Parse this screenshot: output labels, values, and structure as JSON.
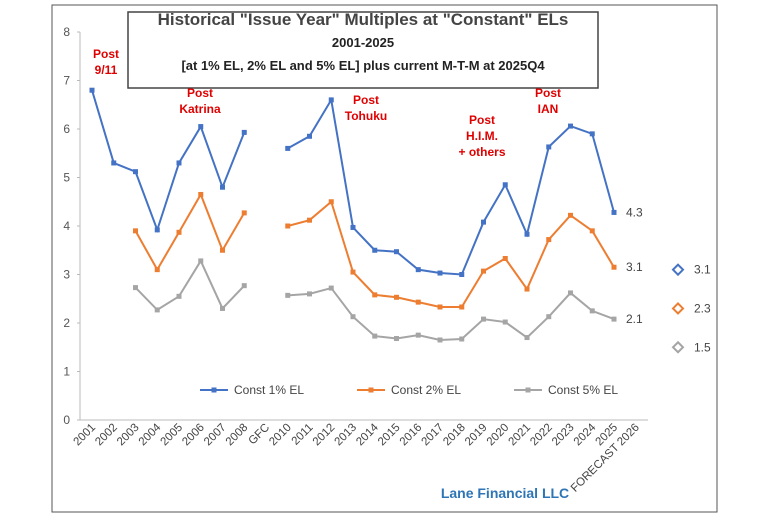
{
  "chart_data": {
    "type": "line",
    "title_lines": [
      "Historical \"Issue Year\" Multiples at \"Constant\" ELs",
      "2001-2025",
      "[at 1% EL, 2% EL and 5% EL]  plus current M-T-M at 2025Q4"
    ],
    "footer": "Lane Financial LLC",
    "categories": [
      "2001",
      "2002",
      "2003",
      "2004",
      "2005",
      "2006",
      "2007",
      "2008",
      "GFC",
      "2010",
      "2011",
      "2012",
      "2013",
      "2014",
      "2015",
      "2016",
      "2017",
      "2018",
      "2019",
      "2020",
      "2021",
      "2022",
      "2023",
      "2024",
      "2025",
      "FORECAST 2026"
    ],
    "ylim": [
      0,
      8
    ],
    "yticks": [
      0,
      1,
      2,
      3,
      4,
      5,
      6,
      7,
      8
    ],
    "series": [
      {
        "name": "Const 1% EL",
        "color": "#4472c4",
        "values": [
          6.8,
          5.3,
          5.12,
          3.92,
          5.3,
          6.05,
          4.8,
          5.93,
          null,
          5.6,
          5.85,
          6.6,
          3.97,
          3.5,
          3.47,
          3.1,
          3.03,
          3.0,
          4.08,
          4.85,
          3.83,
          5.63,
          6.06,
          5.9,
          4.28,
          null
        ],
        "value_labels": [
          null,
          null,
          null,
          null,
          null,
          null,
          null,
          null,
          null,
          null,
          null,
          null,
          null,
          null,
          null,
          null,
          null,
          null,
          null,
          null,
          null,
          null,
          null,
          null,
          "4.3",
          null
        ],
        "forecast": 3.1
      },
      {
        "name": "Const 2% EL",
        "color": "#ed7d31",
        "values": [
          null,
          null,
          3.9,
          3.1,
          3.87,
          4.65,
          3.5,
          4.27,
          null,
          4.0,
          4.12,
          4.5,
          3.05,
          2.58,
          2.53,
          2.43,
          2.33,
          2.33,
          3.07,
          3.33,
          2.7,
          3.72,
          4.22,
          3.9,
          3.15,
          null
        ],
        "value_labels": [
          null,
          null,
          null,
          null,
          null,
          null,
          null,
          null,
          null,
          null,
          null,
          null,
          null,
          null,
          null,
          null,
          null,
          null,
          null,
          null,
          null,
          null,
          null,
          null,
          "3.1",
          null
        ],
        "forecast": 2.3
      },
      {
        "name": "Const 5% EL",
        "color": "#a5a5a5",
        "values": [
          null,
          null,
          2.73,
          2.27,
          2.55,
          3.28,
          2.3,
          2.77,
          null,
          2.57,
          2.6,
          2.72,
          2.13,
          1.73,
          1.68,
          1.75,
          1.65,
          1.67,
          2.08,
          2.02,
          1.7,
          2.13,
          2.62,
          2.25,
          2.08,
          null
        ],
        "value_labels": [
          null,
          null,
          null,
          null,
          null,
          null,
          null,
          null,
          null,
          null,
          null,
          null,
          null,
          null,
          null,
          null,
          null,
          null,
          null,
          null,
          null,
          null,
          null,
          null,
          "2.1",
          null
        ],
        "forecast": 1.5
      }
    ],
    "annotations": [
      [
        "Post",
        "9/11"
      ],
      [
        "Post",
        "Katrina"
      ],
      [
        "Post",
        "Tohuku"
      ],
      [
        "Post",
        "H.I.M.",
        "+ others"
      ],
      [
        "Post",
        "IAN"
      ]
    ]
  }
}
